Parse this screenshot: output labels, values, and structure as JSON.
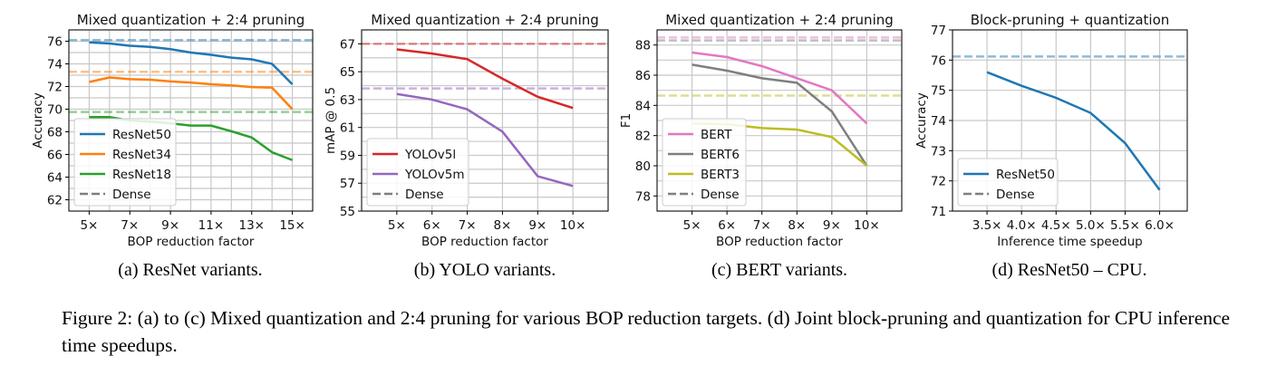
{
  "chart_data": [
    {
      "type": "line",
      "title": "Mixed quantization + 2:4 pruning",
      "xlabel": "BOP reduction factor",
      "ylabel": "Accuracy",
      "x": [
        5,
        6,
        7,
        8,
        9,
        10,
        11,
        12,
        13,
        14,
        15
      ],
      "xlim": [
        4,
        16
      ],
      "ylim": [
        61,
        77
      ],
      "xticks": [
        5,
        7,
        9,
        11,
        13,
        15
      ],
      "xtick_labels": [
        "5×",
        "7×",
        "9×",
        "11×",
        "13×",
        "15×"
      ],
      "yticks": [
        62,
        64,
        66,
        68,
        70,
        72,
        74,
        76
      ],
      "ytick_labels": [
        "62",
        "64",
        "66",
        "68",
        "70",
        "72",
        "74",
        "76"
      ],
      "grid": true,
      "legend_position": "lower-left",
      "series": [
        {
          "name": "ResNet50",
          "color": "#1f77b4",
          "values": [
            75.9,
            75.8,
            75.6,
            75.5,
            75.3,
            75.0,
            74.8,
            74.55,
            74.4,
            74.0,
            72.2
          ],
          "dense": 76.1
        },
        {
          "name": "ResNet34",
          "color": "#ff7f0e",
          "values": [
            72.4,
            72.8,
            72.65,
            72.6,
            72.45,
            72.35,
            72.2,
            72.1,
            71.95,
            71.9,
            70.0
          ],
          "dense": 73.3
        },
        {
          "name": "ResNet18",
          "color": "#2ca02c",
          "values": [
            69.3,
            69.3,
            69.0,
            68.9,
            68.75,
            68.55,
            68.55,
            68.05,
            67.5,
            66.2,
            65.5
          ],
          "dense": 69.75
        }
      ],
      "dense_label": "Dense",
      "caption": "(a) ResNet variants."
    },
    {
      "type": "line",
      "title": "Mixed quantization + 2:4 pruning",
      "xlabel": "BOP reduction factor",
      "ylabel": "mAP @ 0.5",
      "x": [
        5,
        6,
        7,
        8,
        9,
        10
      ],
      "xlim": [
        4,
        11
      ],
      "ylim": [
        55,
        68
      ],
      "xticks": [
        5,
        6,
        7,
        8,
        9,
        10
      ],
      "xtick_labels": [
        "5×",
        "6×",
        "7×",
        "8×",
        "9×",
        "10×"
      ],
      "yticks": [
        55,
        57,
        59,
        61,
        63,
        65,
        67
      ],
      "ytick_labels": [
        "55",
        "57",
        "59",
        "61",
        "63",
        "65",
        "67"
      ],
      "grid": true,
      "legend_position": "lower-left",
      "series": [
        {
          "name": "YOLOv5l",
          "color": "#d62728",
          "values": [
            66.6,
            66.3,
            65.9,
            64.5,
            63.2,
            62.4
          ],
          "dense": 67.0
        },
        {
          "name": "YOLOv5m",
          "color": "#9467bd",
          "values": [
            63.4,
            63.0,
            62.3,
            60.7,
            57.5,
            56.8
          ],
          "dense": 63.8
        }
      ],
      "dense_label": "Dense",
      "caption": "(b) YOLO variants."
    },
    {
      "type": "line",
      "title": "Mixed quantization + 2:4 pruning",
      "xlabel": "BOP reduction factor",
      "ylabel": "F1",
      "x": [
        5,
        6,
        7,
        8,
        9,
        10
      ],
      "xlim": [
        4,
        11
      ],
      "ylim": [
        77,
        89
      ],
      "xticks": [
        5,
        6,
        7,
        8,
        9,
        10
      ],
      "xtick_labels": [
        "5×",
        "6×",
        "7×",
        "8×",
        "9×",
        "10×"
      ],
      "yticks": [
        78,
        80,
        82,
        84,
        86,
        88
      ],
      "ytick_labels": [
        "78",
        "80",
        "82",
        "84",
        "86",
        "88"
      ],
      "grid": true,
      "legend_position": "lower-left",
      "series": [
        {
          "name": "BERT",
          "color": "#e377c2",
          "values": [
            87.5,
            87.2,
            86.6,
            85.8,
            85.0,
            82.8
          ],
          "dense": 88.5
        },
        {
          "name": "BERT6",
          "color": "#7f7f7f",
          "values": [
            86.7,
            86.3,
            85.8,
            85.5,
            83.6,
            80.0
          ],
          "dense": 88.3
        },
        {
          "name": "BERT3",
          "color": "#bcbd22",
          "values": [
            82.8,
            82.75,
            82.5,
            82.4,
            81.9,
            80.0
          ],
          "dense": 84.65
        }
      ],
      "dense_label": "Dense",
      "caption": "(c) BERT variants."
    },
    {
      "type": "line",
      "title": "Block-pruning + quantization",
      "xlabel": "Inference time speedup",
      "ylabel": "Accuracy",
      "x": [
        3.5,
        4.0,
        4.5,
        5.0,
        5.5,
        6.0
      ],
      "xlim": [
        3.0,
        6.4
      ],
      "ylim": [
        71,
        77
      ],
      "xticks": [
        3.5,
        4.0,
        4.5,
        5.0,
        5.5,
        6.0
      ],
      "xtick_labels": [
        "3.5×",
        "4.0×",
        "4.5×",
        "5.0×",
        "5.5×",
        "6.0×"
      ],
      "yticks": [
        71,
        72,
        73,
        74,
        75,
        76,
        77
      ],
      "ytick_labels": [
        "71",
        "72",
        "73",
        "74",
        "75",
        "76",
        "77"
      ],
      "grid": true,
      "legend_position": "lower-left",
      "series": [
        {
          "name": "ResNet50",
          "color": "#1f77b4",
          "values": [
            75.6,
            75.15,
            74.75,
            74.25,
            73.25,
            71.7
          ],
          "dense": 76.12
        }
      ],
      "dense_label": "Dense",
      "caption": "(d) ResNet50 – CPU."
    }
  ],
  "figure_caption": "Figure 2: (a) to (c) Mixed quantization and 2:4 pruning for various BOP reduction targets. (d) Joint block-pruning and quantization for CPU inference time speedups."
}
